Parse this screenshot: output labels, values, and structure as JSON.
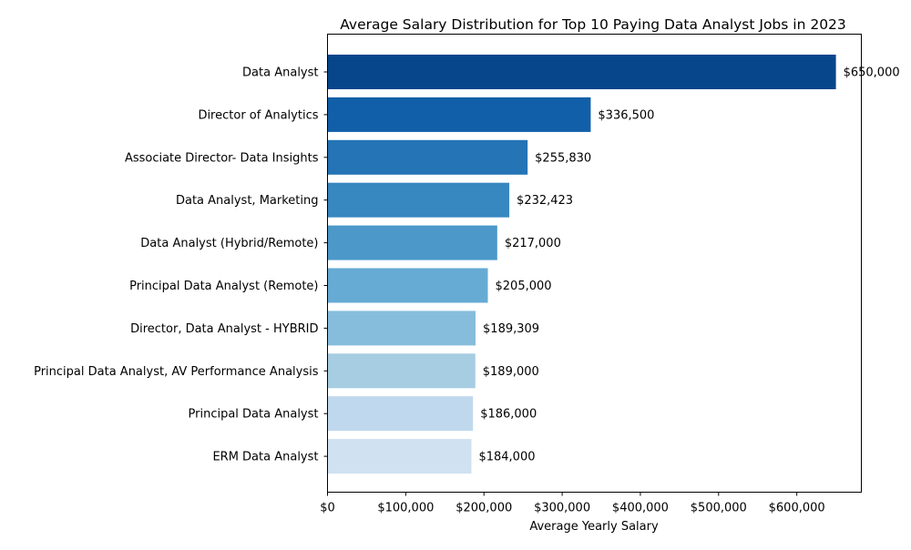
{
  "chart_data": {
    "type": "bar",
    "orientation": "horizontal",
    "title": "Average Salary Distribution for Top 10 Paying Data Analyst Jobs in 2023",
    "xlabel": "Average Yearly Salary",
    "ylabel": "",
    "xlim": [
      0,
      682500
    ],
    "x_ticks": [
      0,
      100000,
      200000,
      300000,
      400000,
      500000,
      600000
    ],
    "x_tick_labels": [
      "$0",
      "$100,000",
      "$200,000",
      "$300,000",
      "$400,000",
      "$500,000",
      "$600,000"
    ],
    "grid": false,
    "legend": "none",
    "categories": [
      "Data Analyst",
      "Director of Analytics",
      "Associate Director- Data Insights",
      "Data Analyst, Marketing",
      "Data Analyst (Hybrid/Remote)",
      "Principal Data Analyst (Remote)",
      "Director, Data Analyst - HYBRID",
      "Principal Data Analyst, AV Performance Analysis",
      "Principal Data Analyst",
      "ERM Data Analyst"
    ],
    "values": [
      650000,
      336500,
      255830,
      232423,
      217000,
      205000,
      189309,
      189000,
      186000,
      184000
    ],
    "value_labels": [
      "$650,000",
      "$336,500",
      "$255,830",
      "$232,423",
      "$217,000",
      "$205,000",
      "$189,309",
      "$189,000",
      "$186,000",
      "$184,000"
    ],
    "colors": [
      "#08468b",
      "#125fa9",
      "#2474b6",
      "#3787c0",
      "#4b98c9",
      "#66abd4",
      "#87bddc",
      "#a6cde2",
      "#bfd8ed",
      "#d0e1f2"
    ]
  }
}
